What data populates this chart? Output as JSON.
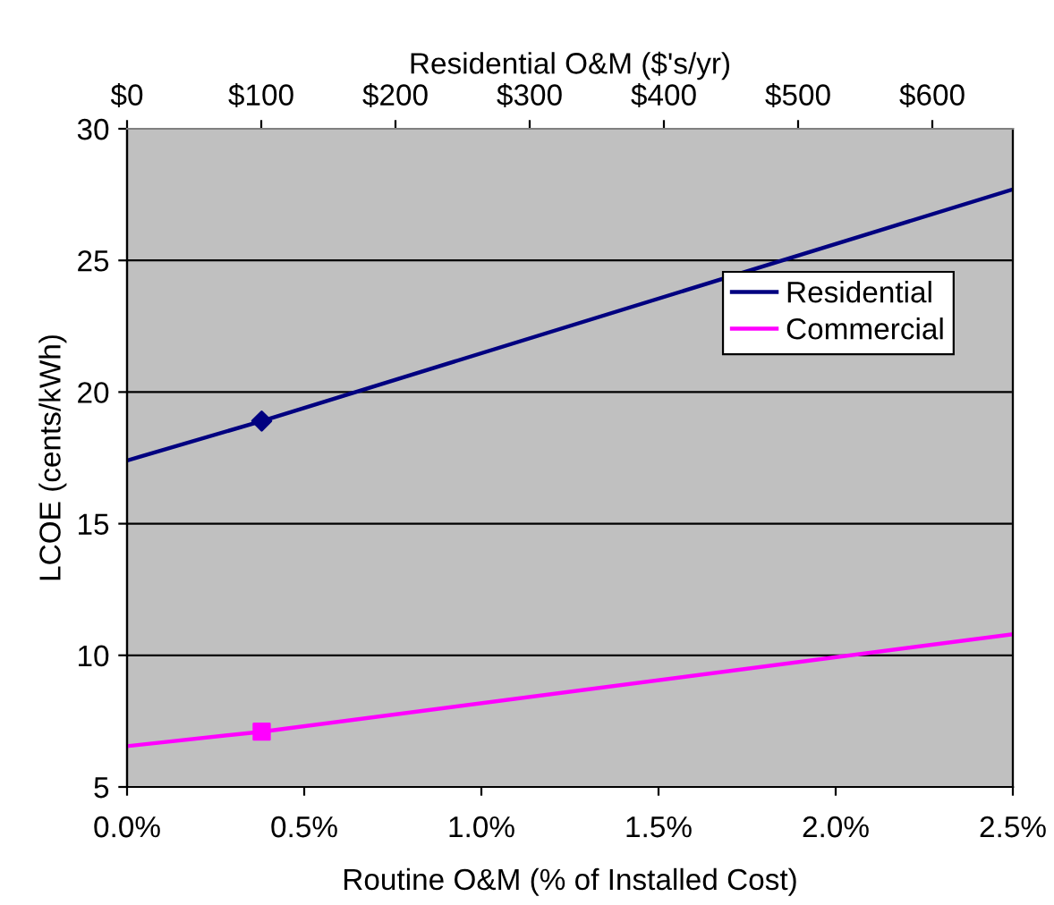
{
  "chart_data": {
    "type": "line",
    "xlabel": "Routine O&M (% of Installed Cost)",
    "ylabel": "LCOE (cents/kWh)",
    "x2label": "Residential O&M ($'s/yr)",
    "series": [
      {
        "name": "Residential",
        "color": "#000080",
        "x": [
          0,
          0.38,
          2.5
        ],
        "values": [
          17.4,
          18.9,
          27.7
        ]
      },
      {
        "name": "Commercial",
        "color": "#ff00ff",
        "x": [
          0,
          0.38,
          2.5
        ],
        "values": [
          6.55,
          7.1,
          10.8
        ]
      },
      {
        "type": "scatter",
        "marker": "diamond",
        "color": "#000080",
        "x": [
          0.38
        ],
        "values": [
          18.9
        ]
      },
      {
        "type": "scatter",
        "marker": "square",
        "color": "#ff00ff",
        "x": [
          0.38
        ],
        "values": [
          7.1
        ]
      }
    ],
    "xlim": [
      0,
      2.5
    ],
    "ylim": [
      5,
      30
    ],
    "xticks": [
      {
        "value": 0,
        "label": "0.0%"
      },
      {
        "value": 0.5,
        "label": "0.5%"
      },
      {
        "value": 1.0,
        "label": "1.0%"
      },
      {
        "value": 1.5,
        "label": "1.5%"
      },
      {
        "value": 2.0,
        "label": "2.0%"
      },
      {
        "value": 2.5,
        "label": "2.5%"
      }
    ],
    "yticks": [
      5,
      10,
      15,
      20,
      25,
      30
    ],
    "x2lim": [
      0,
      660
    ],
    "x2ticks": [
      {
        "value": 0,
        "label": "$0"
      },
      {
        "value": 100,
        "label": "$100"
      },
      {
        "value": 200,
        "label": "$200"
      },
      {
        "value": 300,
        "label": "$300"
      },
      {
        "value": 400,
        "label": "$400"
      },
      {
        "value": 500,
        "label": "$500"
      },
      {
        "value": 600,
        "label": "$600"
      }
    ],
    "grid": "y",
    "legend": "right",
    "marker": "none",
    "line_style": "solid"
  }
}
